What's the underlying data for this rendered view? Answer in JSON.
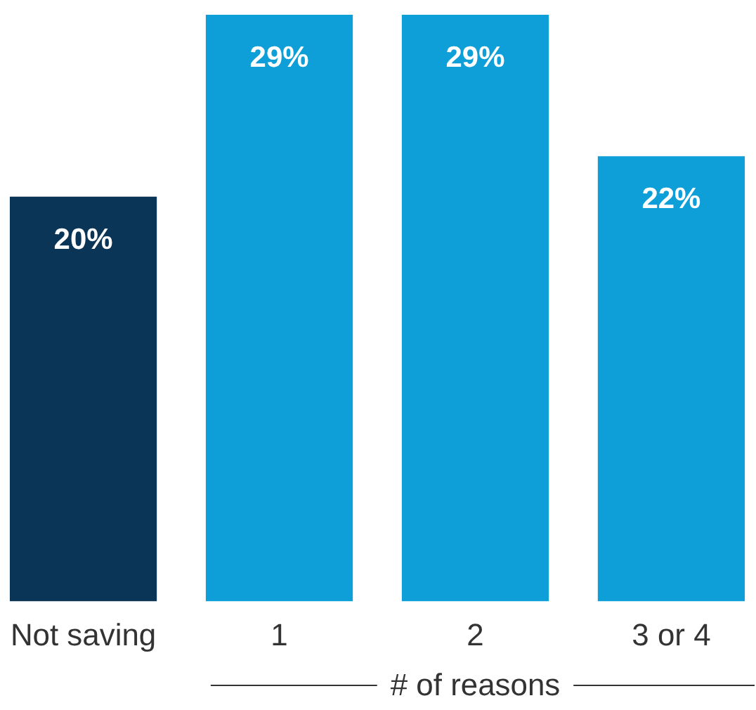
{
  "chart_data": {
    "type": "bar",
    "xlabel": "# of reasons",
    "categories": [
      "Not saving",
      "1",
      "2",
      "3 or 4"
    ],
    "values": [
      20,
      29,
      29,
      22
    ],
    "value_labels": [
      "20%",
      "29%",
      "29%",
      "22%"
    ],
    "colors": [
      "#0b3556",
      "#0f9fd8",
      "#0f9fd8",
      "#0f9fd8"
    ]
  }
}
